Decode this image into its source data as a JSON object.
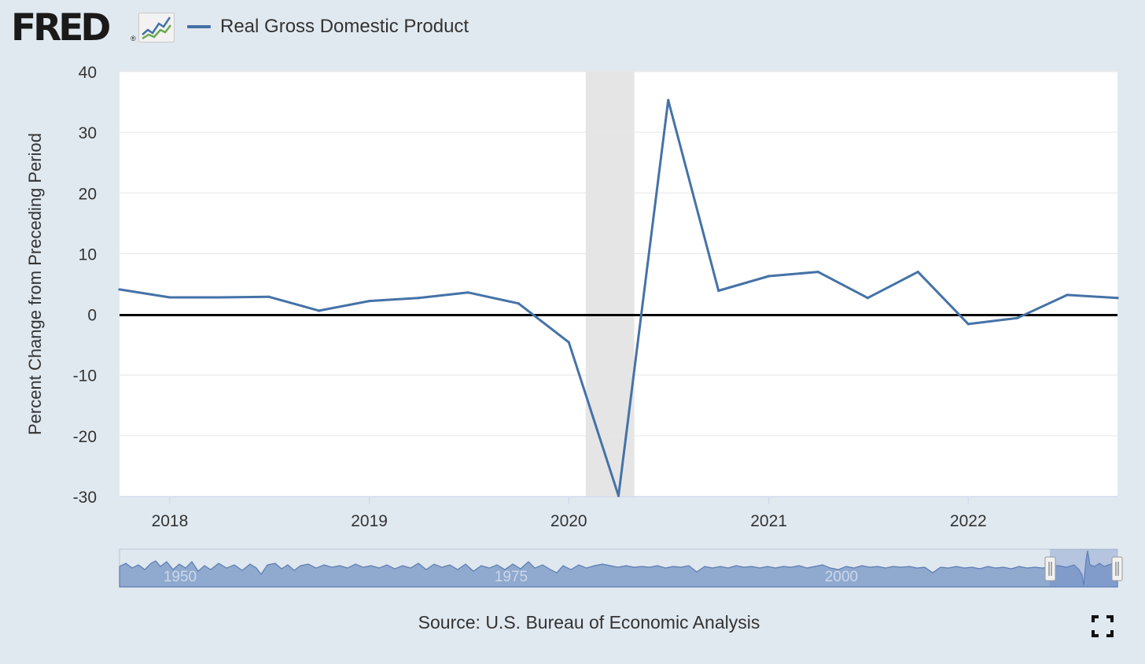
{
  "header": {
    "logo_text": "FRED",
    "logo_registered": "®",
    "legend_label": "Real Gross Domestic Product"
  },
  "footer": {
    "source": "Source: U.S. Bureau of Economic Analysis"
  },
  "colors": {
    "background": "#e1e9f0",
    "plot_background": "#ffffff",
    "series": "#4572a7",
    "recession_band": "#e5e5e5",
    "zero_line": "#000000",
    "navigator_fill": "#8fa9cf"
  },
  "icons": {
    "logo_chart": "line-chart-icon",
    "fullscreen": "fullscreen-icon"
  },
  "chart_data": {
    "type": "line",
    "title": "Real Gross Domestic Product",
    "xlabel": "",
    "ylabel": "Percent Change from Preceding Period",
    "ylim": [
      -30,
      40
    ],
    "yticks": [
      -30,
      -20,
      -10,
      0,
      10,
      20,
      30,
      40
    ],
    "xlim": [
      "2017-10-01",
      "2022-10-01"
    ],
    "xticks": [
      "2018",
      "2019",
      "2020",
      "2021",
      "2022"
    ],
    "grid": true,
    "legend": "top-left",
    "series": [
      {
        "name": "Real Gross Domestic Product",
        "x": [
          "2017-10-01",
          "2018-01-01",
          "2018-04-01",
          "2018-07-01",
          "2018-10-01",
          "2019-01-01",
          "2019-04-01",
          "2019-07-01",
          "2019-10-01",
          "2020-01-01",
          "2020-04-01",
          "2020-07-01",
          "2020-10-01",
          "2021-01-01",
          "2021-04-01",
          "2021-07-01",
          "2021-10-01",
          "2022-01-01",
          "2022-04-01",
          "2022-07-01",
          "2022-10-01"
        ],
        "values": [
          4.1,
          2.8,
          2.8,
          2.9,
          0.6,
          2.2,
          2.7,
          3.6,
          1.8,
          -4.6,
          -29.9,
          35.3,
          3.9,
          6.3,
          7.0,
          2.7,
          7.0,
          -1.6,
          -0.6,
          3.2,
          2.7
        ]
      }
    ],
    "recessions": [
      {
        "start": "2020-02-01",
        "end": "2020-04-30"
      }
    ],
    "navigator": {
      "tick_labels": [
        "1950",
        "1975",
        "2000"
      ]
    }
  }
}
